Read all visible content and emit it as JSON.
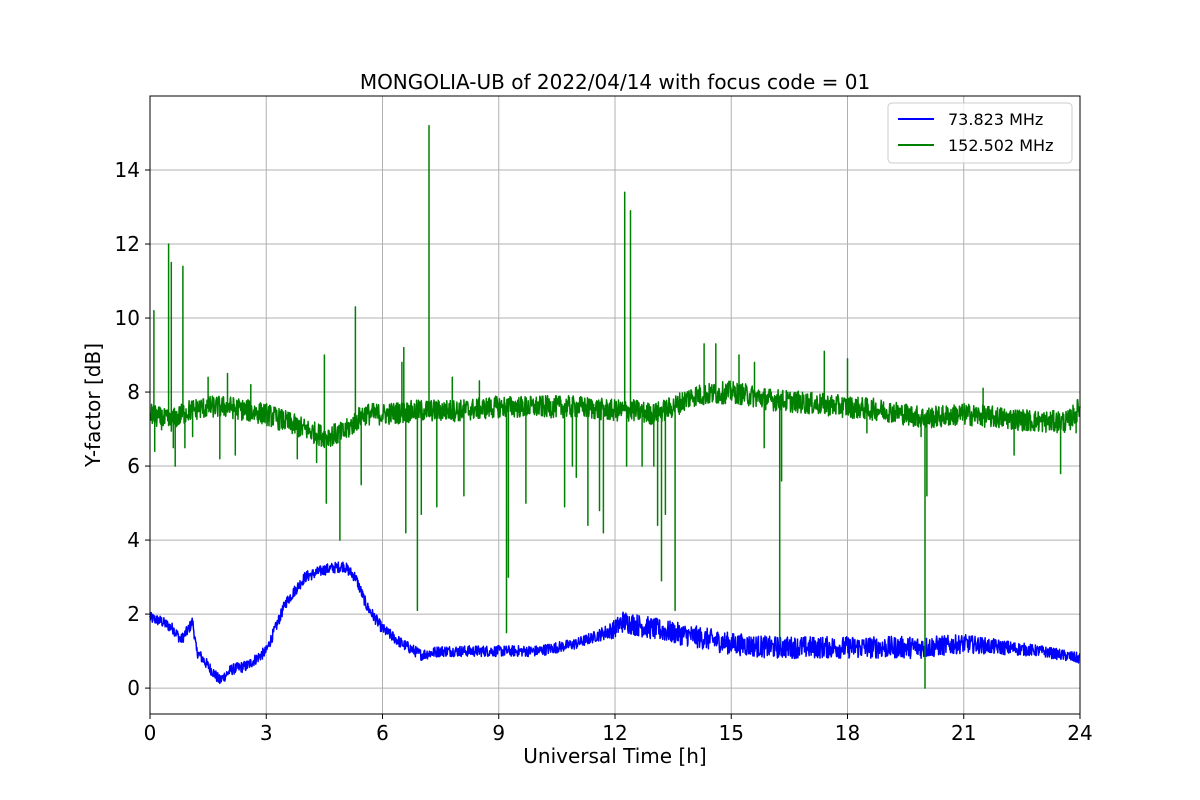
{
  "chart_data": {
    "type": "line",
    "title": "MONGOLIA-UB of 2022/04/14 with focus code = 01",
    "xlabel": "Universal Time [h]",
    "ylabel": "Y-factor [dB]",
    "xlim": [
      0,
      24
    ],
    "ylim": [
      -0.7,
      16
    ],
    "xticks": [
      0,
      3,
      6,
      9,
      12,
      15,
      18,
      21,
      24
    ],
    "yticks": [
      0,
      2,
      4,
      6,
      8,
      10,
      12,
      14
    ],
    "grid": true,
    "legend_position": "top-right",
    "series": [
      {
        "name": "  73.823 MHz",
        "color": "#0000ff",
        "x": [
          0,
          0.3,
          0.6,
          0.8,
          1.0,
          1.1,
          1.2,
          1.5,
          1.8,
          2.1,
          2.5,
          3.0,
          3.5,
          4.0,
          4.5,
          5.0,
          5.3,
          5.6,
          6.0,
          6.5,
          7.0,
          7.5,
          8.0,
          8.5,
          9.0,
          9.5,
          10.0,
          10.5,
          11.0,
          11.5,
          12.0,
          12.2,
          13.0,
          13.5,
          14.0,
          15.0,
          16.0,
          17.0,
          18.0,
          19.0,
          20.0,
          21.0,
          22.0,
          23.0,
          24.0
        ],
        "y": [
          1.9,
          1.8,
          1.6,
          1.3,
          1.6,
          1.8,
          1.0,
          0.6,
          0.2,
          0.5,
          0.6,
          1.0,
          2.3,
          3.0,
          3.2,
          3.3,
          3.0,
          2.2,
          1.6,
          1.2,
          0.9,
          1.0,
          1.0,
          1.0,
          1.0,
          1.0,
          1.0,
          1.1,
          1.2,
          1.4,
          1.6,
          1.8,
          1.6,
          1.5,
          1.4,
          1.2,
          1.1,
          1.1,
          1.1,
          1.1,
          1.1,
          1.2,
          1.1,
          1.0,
          0.8
        ],
        "noise": [
          0.15,
          0.15,
          0.15,
          0.15,
          0.15,
          0.15,
          0.15,
          0.15,
          0.15,
          0.15,
          0.15,
          0.15,
          0.15,
          0.15,
          0.15,
          0.15,
          0.15,
          0.15,
          0.15,
          0.15,
          0.15,
          0.15,
          0.15,
          0.15,
          0.15,
          0.15,
          0.15,
          0.15,
          0.15,
          0.15,
          0.25,
          0.3,
          0.3,
          0.3,
          0.3,
          0.3,
          0.3,
          0.3,
          0.3,
          0.3,
          0.3,
          0.25,
          0.2,
          0.15,
          0.15
        ],
        "spikes": []
      },
      {
        "name": "152.502 MHz",
        "color": "#008000",
        "x": [
          0,
          0.5,
          1.0,
          1.5,
          2.0,
          2.5,
          3.0,
          3.5,
          4.0,
          4.5,
          5.0,
          5.5,
          6.0,
          7.0,
          8.0,
          9.0,
          10.0,
          11.0,
          12.0,
          12.5,
          13.0,
          13.5,
          14.0,
          15.0,
          16.0,
          17.0,
          18.0,
          19.0,
          20.0,
          21.0,
          22.0,
          23.0,
          23.7,
          24.0
        ],
        "y": [
          7.4,
          7.2,
          7.5,
          7.6,
          7.6,
          7.5,
          7.4,
          7.2,
          7.0,
          6.8,
          6.9,
          7.4,
          7.4,
          7.5,
          7.5,
          7.6,
          7.6,
          7.6,
          7.5,
          7.5,
          7.4,
          7.6,
          7.9,
          8.0,
          7.8,
          7.7,
          7.6,
          7.5,
          7.3,
          7.4,
          7.3,
          7.2,
          7.2,
          7.6
        ],
        "noise": [
          0.3,
          0.3,
          0.3,
          0.3,
          0.3,
          0.3,
          0.3,
          0.3,
          0.3,
          0.3,
          0.3,
          0.3,
          0.3,
          0.3,
          0.3,
          0.3,
          0.3,
          0.3,
          0.3,
          0.3,
          0.3,
          0.3,
          0.3,
          0.3,
          0.3,
          0.3,
          0.3,
          0.3,
          0.3,
          0.3,
          0.3,
          0.3,
          0.3,
          0.3
        ],
        "spikes": [
          [
            0.1,
            10.2
          ],
          [
            0.12,
            6.4
          ],
          [
            0.48,
            12.0
          ],
          [
            0.55,
            11.5
          ],
          [
            0.6,
            6.5
          ],
          [
            0.65,
            6.0
          ],
          [
            0.85,
            11.4
          ],
          [
            0.9,
            6.5
          ],
          [
            1.1,
            6.8
          ],
          [
            1.5,
            8.4
          ],
          [
            1.8,
            6.2
          ],
          [
            2.0,
            8.5
          ],
          [
            2.2,
            6.3
          ],
          [
            2.6,
            8.2
          ],
          [
            3.8,
            6.2
          ],
          [
            4.3,
            6.1
          ],
          [
            4.5,
            9.0
          ],
          [
            4.55,
            5.0
          ],
          [
            4.9,
            4.0
          ],
          [
            5.3,
            10.3
          ],
          [
            5.45,
            5.5
          ],
          [
            6.5,
            8.8
          ],
          [
            6.55,
            9.2
          ],
          [
            6.6,
            4.2
          ],
          [
            6.9,
            2.1
          ],
          [
            7.0,
            4.7
          ],
          [
            7.2,
            15.2
          ],
          [
            7.4,
            4.9
          ],
          [
            7.8,
            8.4
          ],
          [
            8.1,
            5.2
          ],
          [
            8.5,
            8.3
          ],
          [
            9.2,
            1.5
          ],
          [
            9.25,
            3.0
          ],
          [
            9.7,
            5.0
          ],
          [
            10.7,
            4.9
          ],
          [
            10.9,
            6.0
          ],
          [
            11.0,
            5.7
          ],
          [
            11.3,
            4.4
          ],
          [
            11.6,
            4.8
          ],
          [
            11.7,
            4.2
          ],
          [
            12.25,
            13.4
          ],
          [
            12.3,
            6.0
          ],
          [
            12.4,
            12.9
          ],
          [
            12.7,
            6.0
          ],
          [
            13.0,
            6.0
          ],
          [
            13.1,
            4.4
          ],
          [
            13.2,
            2.9
          ],
          [
            13.3,
            4.7
          ],
          [
            13.55,
            2.1
          ],
          [
            14.3,
            9.3
          ],
          [
            14.6,
            9.3
          ],
          [
            15.2,
            9.0
          ],
          [
            15.6,
            8.8
          ],
          [
            15.85,
            6.5
          ],
          [
            16.25,
            1.2
          ],
          [
            16.3,
            5.6
          ],
          [
            17.4,
            9.1
          ],
          [
            18.0,
            8.9
          ],
          [
            18.5,
            6.9
          ],
          [
            19.9,
            6.8
          ],
          [
            20.0,
            0.0
          ],
          [
            20.05,
            5.2
          ],
          [
            21.5,
            8.1
          ],
          [
            22.3,
            6.3
          ],
          [
            23.5,
            5.8
          ],
          [
            23.9,
            6.9
          ]
        ]
      }
    ]
  }
}
